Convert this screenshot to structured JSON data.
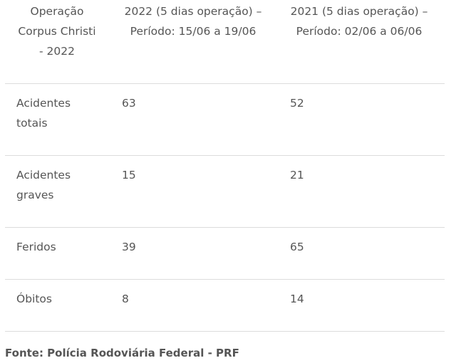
{
  "table": {
    "headers": [
      "Operação Corpus Christi - 2022",
      "2022 (5 dias operação) – Período: 15/06 a 19/06",
      "2021 (5 dias operação) – Período: 02/06 a 06/06"
    ],
    "rows": [
      [
        "Acidentes totais",
        "63",
        "52"
      ],
      [
        "Acidentes graves",
        "15",
        "21"
      ],
      [
        "Feridos",
        "39",
        "65"
      ],
      [
        "Óbitos",
        "8",
        "14"
      ]
    ]
  },
  "source": "Fonte: Polícia Rodoviária Federal - PRF"
}
